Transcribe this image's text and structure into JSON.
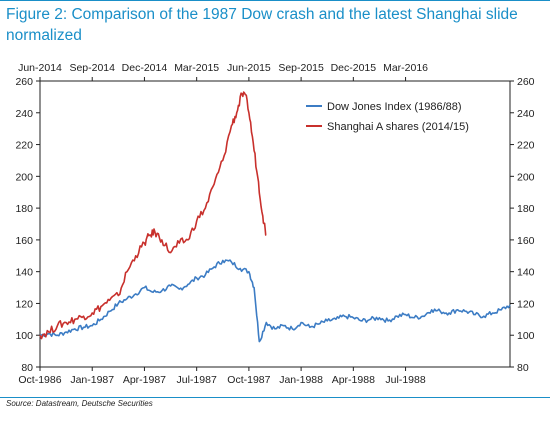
{
  "figure": {
    "title": "Figure 2: Comparison of the 1987 Dow crash and the latest Shanghai slide normalized",
    "source": "Source: Datastream, Deutsche Securities"
  },
  "colors": {
    "dow": "#3c7cc4",
    "shanghai": "#c8302c",
    "title": "#1a8fc8",
    "axis": "#222222"
  },
  "chart_data": {
    "type": "line",
    "title": "",
    "xlabel": "",
    "ylabel": "",
    "ylim": [
      80,
      260
    ],
    "yticks": [
      80,
      100,
      120,
      140,
      160,
      180,
      200,
      220,
      240,
      260
    ],
    "xlim": [
      0,
      27
    ],
    "x_unit": "months from start of each axis",
    "bottom_axis_labels": [
      "Oct-1986",
      "Jan-1987",
      "Apr-1987",
      "Jul-1987",
      "Oct-1987",
      "Jan-1988",
      "Apr-1988",
      "Jul-1988"
    ],
    "top_axis_labels": [
      "Jun-2014",
      "Sep-2014",
      "Dec-2014",
      "Mar-2015",
      "Jun-2015",
      "Sep-2015",
      "Dec-2015",
      "Mar-2016"
    ],
    "grid": false,
    "legend_position": "top-right",
    "series": [
      {
        "name": "Dow Jones Index (1986/88)",
        "x": [
          0,
          0.5,
          1,
          1.5,
          2,
          2.5,
          3,
          3.5,
          4,
          4.5,
          5,
          5.5,
          6,
          6.5,
          7,
          7.5,
          8,
          8.5,
          9,
          9.5,
          10,
          10.5,
          11,
          11.5,
          12,
          12.3,
          12.6,
          13,
          13.5,
          14,
          14.5,
          15,
          15.5,
          16,
          16.5,
          17,
          17.5,
          18,
          18.5,
          19,
          19.5,
          20,
          20.5,
          21,
          21.5,
          22,
          22.5,
          23,
          23.5,
          24,
          24.5,
          25,
          25.5,
          26,
          26.5,
          27
        ],
        "values": [
          100,
          101,
          100,
          102,
          104,
          105,
          106,
          110,
          115,
          120,
          123,
          126,
          130,
          127,
          128,
          131,
          129,
          132,
          136,
          138,
          143,
          147,
          146,
          142,
          140,
          130,
          96,
          108,
          104,
          106,
          104,
          108,
          105,
          107,
          109,
          110,
          112,
          111,
          109,
          110,
          111,
          109,
          112,
          113,
          111,
          112,
          116,
          115,
          114,
          116,
          115,
          113,
          112,
          114,
          116,
          119
        ]
      },
      {
        "name": "Shanghai A shares (2014/15)",
        "x": [
          0,
          0.5,
          1,
          1.5,
          2,
          2.5,
          3,
          3.5,
          4,
          4.5,
          5,
          5.5,
          6,
          6.3,
          6.6,
          7,
          7.5,
          8,
          8.5,
          9,
          9.5,
          10,
          10.5,
          11,
          11.3,
          11.6,
          11.9,
          12.2,
          12.5,
          12.8,
          13
        ],
        "values": [
          100,
          102,
          106,
          108,
          110,
          112,
          114,
          118,
          122,
          125,
          140,
          150,
          158,
          163,
          165,
          160,
          152,
          158,
          160,
          172,
          180,
          195,
          210,
          232,
          240,
          252,
          248,
          225,
          200,
          175,
          163
        ]
      }
    ]
  }
}
